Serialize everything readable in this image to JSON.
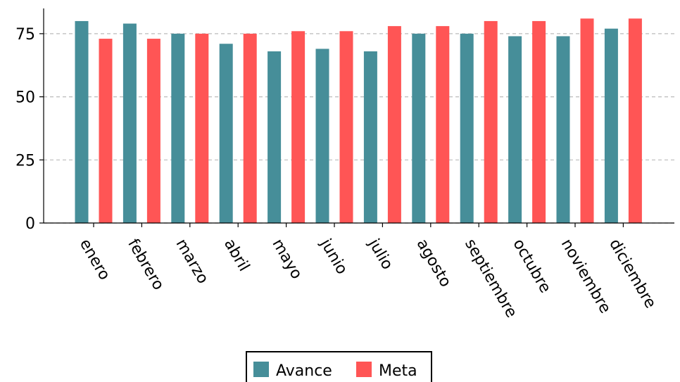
{
  "chart_data": {
    "type": "bar",
    "categories": [
      "enero",
      "febrero",
      "marzo",
      "abril",
      "mayo",
      "junio",
      "julio",
      "agosto",
      "septiembre",
      "octubre",
      "noviembre",
      "diciembre"
    ],
    "series": [
      {
        "name": "Avance",
        "color": "#468E99",
        "values": [
          80,
          79,
          75,
          71,
          68,
          69,
          68,
          75,
          75,
          74,
          74,
          77
        ]
      },
      {
        "name": "Meta",
        "color": "#FF5555",
        "values": [
          73,
          73,
          75,
          75,
          76,
          76,
          78,
          78,
          80,
          80,
          81,
          81
        ]
      }
    ],
    "yticks": [
      "0",
      "25",
      "50",
      "75"
    ],
    "ylim": [
      0,
      85
    ],
    "grid": "horizontal dashed",
    "legend": "bottom-center"
  }
}
